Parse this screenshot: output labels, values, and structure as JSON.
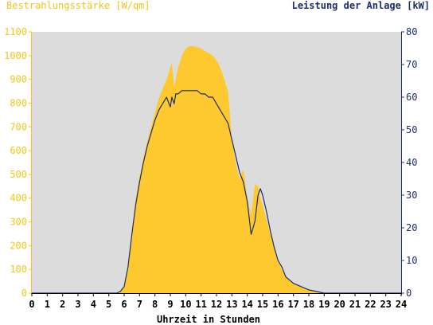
{
  "chart_data": {
    "type": "area",
    "title_left": "Bestrahlungsstärke [W/qm]",
    "title_right": "Leistung der Anlage [kW]",
    "xlabel": "Uhrzeit in Stunden",
    "xlim": [
      0,
      24
    ],
    "ylim_left": [
      0,
      1100
    ],
    "ylim_right": [
      0,
      80
    ],
    "x_ticks": [
      "0",
      "1",
      "2",
      "3",
      "4",
      "5",
      "6",
      "7",
      "8",
      "9",
      "10",
      "11",
      "12",
      "13",
      "14",
      "15",
      "16",
      "17",
      "18",
      "19",
      "20",
      "21",
      "22",
      "23",
      "24"
    ],
    "y_ticks_left": [
      "0",
      "100",
      "200",
      "300",
      "400",
      "500",
      "600",
      "700",
      "800",
      "900",
      "1000",
      "1100"
    ],
    "y_ticks_right": [
      "0",
      "10",
      "20",
      "30",
      "40",
      "50",
      "60",
      "70",
      "80"
    ],
    "grid": false,
    "colors": {
      "plot_bg": "#dcdcdc",
      "irradiance": "#fec92f",
      "power": "#1c2f6b",
      "axis_left": "#f5c518",
      "axis_right": "#1c2f6b"
    },
    "series": [
      {
        "name": "Bestrahlungsstärke [W/qm]",
        "axis": "left",
        "kind": "area",
        "x": [
          0,
          5.5,
          5.75,
          6.0,
          6.25,
          6.5,
          6.75,
          7.0,
          7.25,
          7.5,
          7.75,
          8.0,
          8.25,
          8.5,
          8.75,
          9.0,
          9.1,
          9.25,
          9.35,
          9.5,
          9.75,
          10.0,
          10.25,
          10.5,
          10.75,
          11.0,
          11.25,
          11.5,
          11.75,
          12.0,
          12.25,
          12.5,
          12.75,
          13.0,
          13.25,
          13.5,
          13.6,
          13.75,
          14.0,
          14.25,
          14.5,
          14.7,
          14.85,
          15.0,
          15.25,
          15.5,
          15.75,
          16.0,
          16.25,
          16.5,
          17.0,
          17.5,
          18.0,
          18.5,
          19.0,
          19.25,
          19.5,
          24
        ],
        "values": [
          0,
          0,
          8,
          30,
          120,
          270,
          400,
          490,
          570,
          640,
          700,
          760,
          820,
          860,
          900,
          950,
          970,
          870,
          900,
          950,
          1000,
          1030,
          1040,
          1040,
          1035,
          1030,
          1020,
          1010,
          1000,
          980,
          950,
          900,
          850,
          650,
          550,
          480,
          500,
          520,
          400,
          330,
          460,
          450,
          400,
          370,
          310,
          250,
          190,
          135,
          100,
          70,
          40,
          25,
          12,
          5,
          0,
          0,
          0,
          0
        ]
      },
      {
        "name": "Leistung der Anlage [kW]",
        "axis": "right",
        "kind": "line",
        "x": [
          0,
          5.5,
          5.75,
          6.0,
          6.25,
          6.5,
          6.75,
          7.0,
          7.25,
          7.5,
          7.75,
          8.0,
          8.25,
          8.5,
          8.75,
          9.0,
          9.1,
          9.25,
          9.35,
          9.5,
          9.75,
          10.0,
          10.25,
          10.5,
          10.75,
          11.0,
          11.25,
          11.5,
          11.75,
          12.0,
          12.25,
          12.5,
          12.75,
          13.0,
          13.25,
          13.5,
          13.75,
          14.0,
          14.25,
          14.5,
          14.7,
          14.85,
          15.0,
          15.25,
          15.5,
          15.75,
          16.0,
          16.25,
          16.5,
          17.0,
          17.5,
          18.0,
          18.5,
          19.0,
          19.25,
          19.5,
          24
        ],
        "values": [
          0,
          0,
          0.5,
          2,
          8,
          18,
          27,
          34,
          40,
          45,
          49,
          53,
          56,
          58,
          60,
          57,
          60,
          58,
          61,
          61,
          62,
          62,
          62,
          62,
          62,
          61,
          61,
          60,
          60,
          58,
          56,
          54,
          52,
          47,
          42,
          37,
          34,
          28,
          18,
          22,
          30,
          32,
          30,
          25,
          19,
          14,
          10,
          8,
          5,
          3,
          2,
          1,
          0.5,
          0,
          0,
          0,
          0
        ]
      }
    ]
  }
}
